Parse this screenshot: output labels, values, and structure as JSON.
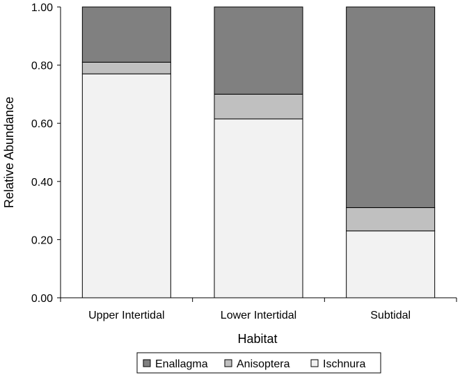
{
  "chart_data": {
    "type": "bar",
    "stacked": true,
    "title": "",
    "xlabel": "Habitat",
    "ylabel": "Relative Abundance",
    "ylim": [
      0,
      1
    ],
    "yticks": [
      "0.00",
      "0.20",
      "0.40",
      "0.60",
      "0.80",
      "1.00"
    ],
    "categories": [
      "Upper Intertidal",
      "Lower Intertidal",
      "Subtidal"
    ],
    "series": [
      {
        "name": "Ischnura",
        "values": [
          0.77,
          0.615,
          0.23
        ],
        "color": "#f2f2f2"
      },
      {
        "name": "Anisoptera",
        "values": [
          0.04,
          0.085,
          0.08
        ],
        "color": "#c0c0c0"
      },
      {
        "name": "Enallagma",
        "values": [
          0.19,
          0.3,
          0.69
        ],
        "color": "#808080"
      }
    ],
    "legend": {
      "position": "bottom",
      "order": [
        "Enallagma",
        "Anisoptera",
        "Ischnura"
      ]
    },
    "grid": false
  }
}
